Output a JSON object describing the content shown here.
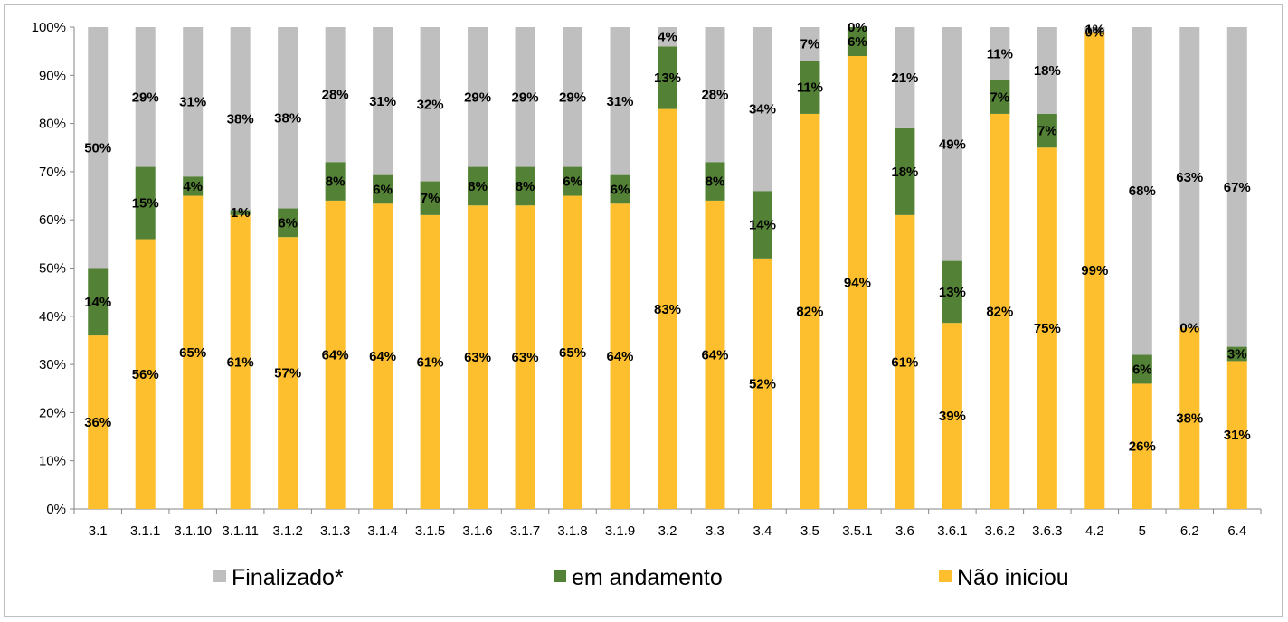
{
  "chart_data": {
    "type": "bar",
    "stacked": "percent",
    "categories": [
      "3.1",
      "3.1.1",
      "3.1.10",
      "3.1.11",
      "3.1.2",
      "3.1.3",
      "3.1.4",
      "3.1.5",
      "3.1.6",
      "3.1.7",
      "3.1.8",
      "3.1.9",
      "3.2",
      "3.3",
      "3.4",
      "3.5",
      "3.5.1",
      "3.6",
      "3.6.1",
      "3.6.2",
      "3.6.3",
      "4.2",
      "5",
      "6.2",
      "6.4"
    ],
    "series": [
      {
        "name": "Não iniciou",
        "color": "#FDBF2D",
        "values": [
          36,
          56,
          65,
          61,
          57,
          64,
          64,
          61,
          63,
          63,
          65,
          64,
          83,
          64,
          52,
          82,
          94,
          61,
          39,
          82,
          75,
          99,
          26,
          38,
          31
        ]
      },
      {
        "name": "em andamento",
        "color": "#538135",
        "values": [
          14,
          15,
          4,
          1,
          6,
          8,
          6,
          7,
          8,
          8,
          6,
          6,
          13,
          8,
          14,
          11,
          6,
          18,
          13,
          7,
          7,
          0,
          6,
          0,
          3
        ]
      },
      {
        "name": "Finalizado*",
        "color": "#BFBFBF",
        "values": [
          50,
          29,
          31,
          38,
          38,
          28,
          31,
          32,
          29,
          29,
          29,
          31,
          4,
          28,
          34,
          7,
          0,
          21,
          49,
          11,
          18,
          1,
          68,
          63,
          67
        ]
      }
    ],
    "y_ticks": [
      "0%",
      "10%",
      "20%",
      "30%",
      "40%",
      "50%",
      "60%",
      "70%",
      "80%",
      "90%",
      "100%"
    ],
    "ylim": [
      0,
      100
    ],
    "legend_order": [
      "Finalizado*",
      "em andamento",
      "Não iniciou"
    ],
    "legend_position": "bottom",
    "grid": false
  }
}
